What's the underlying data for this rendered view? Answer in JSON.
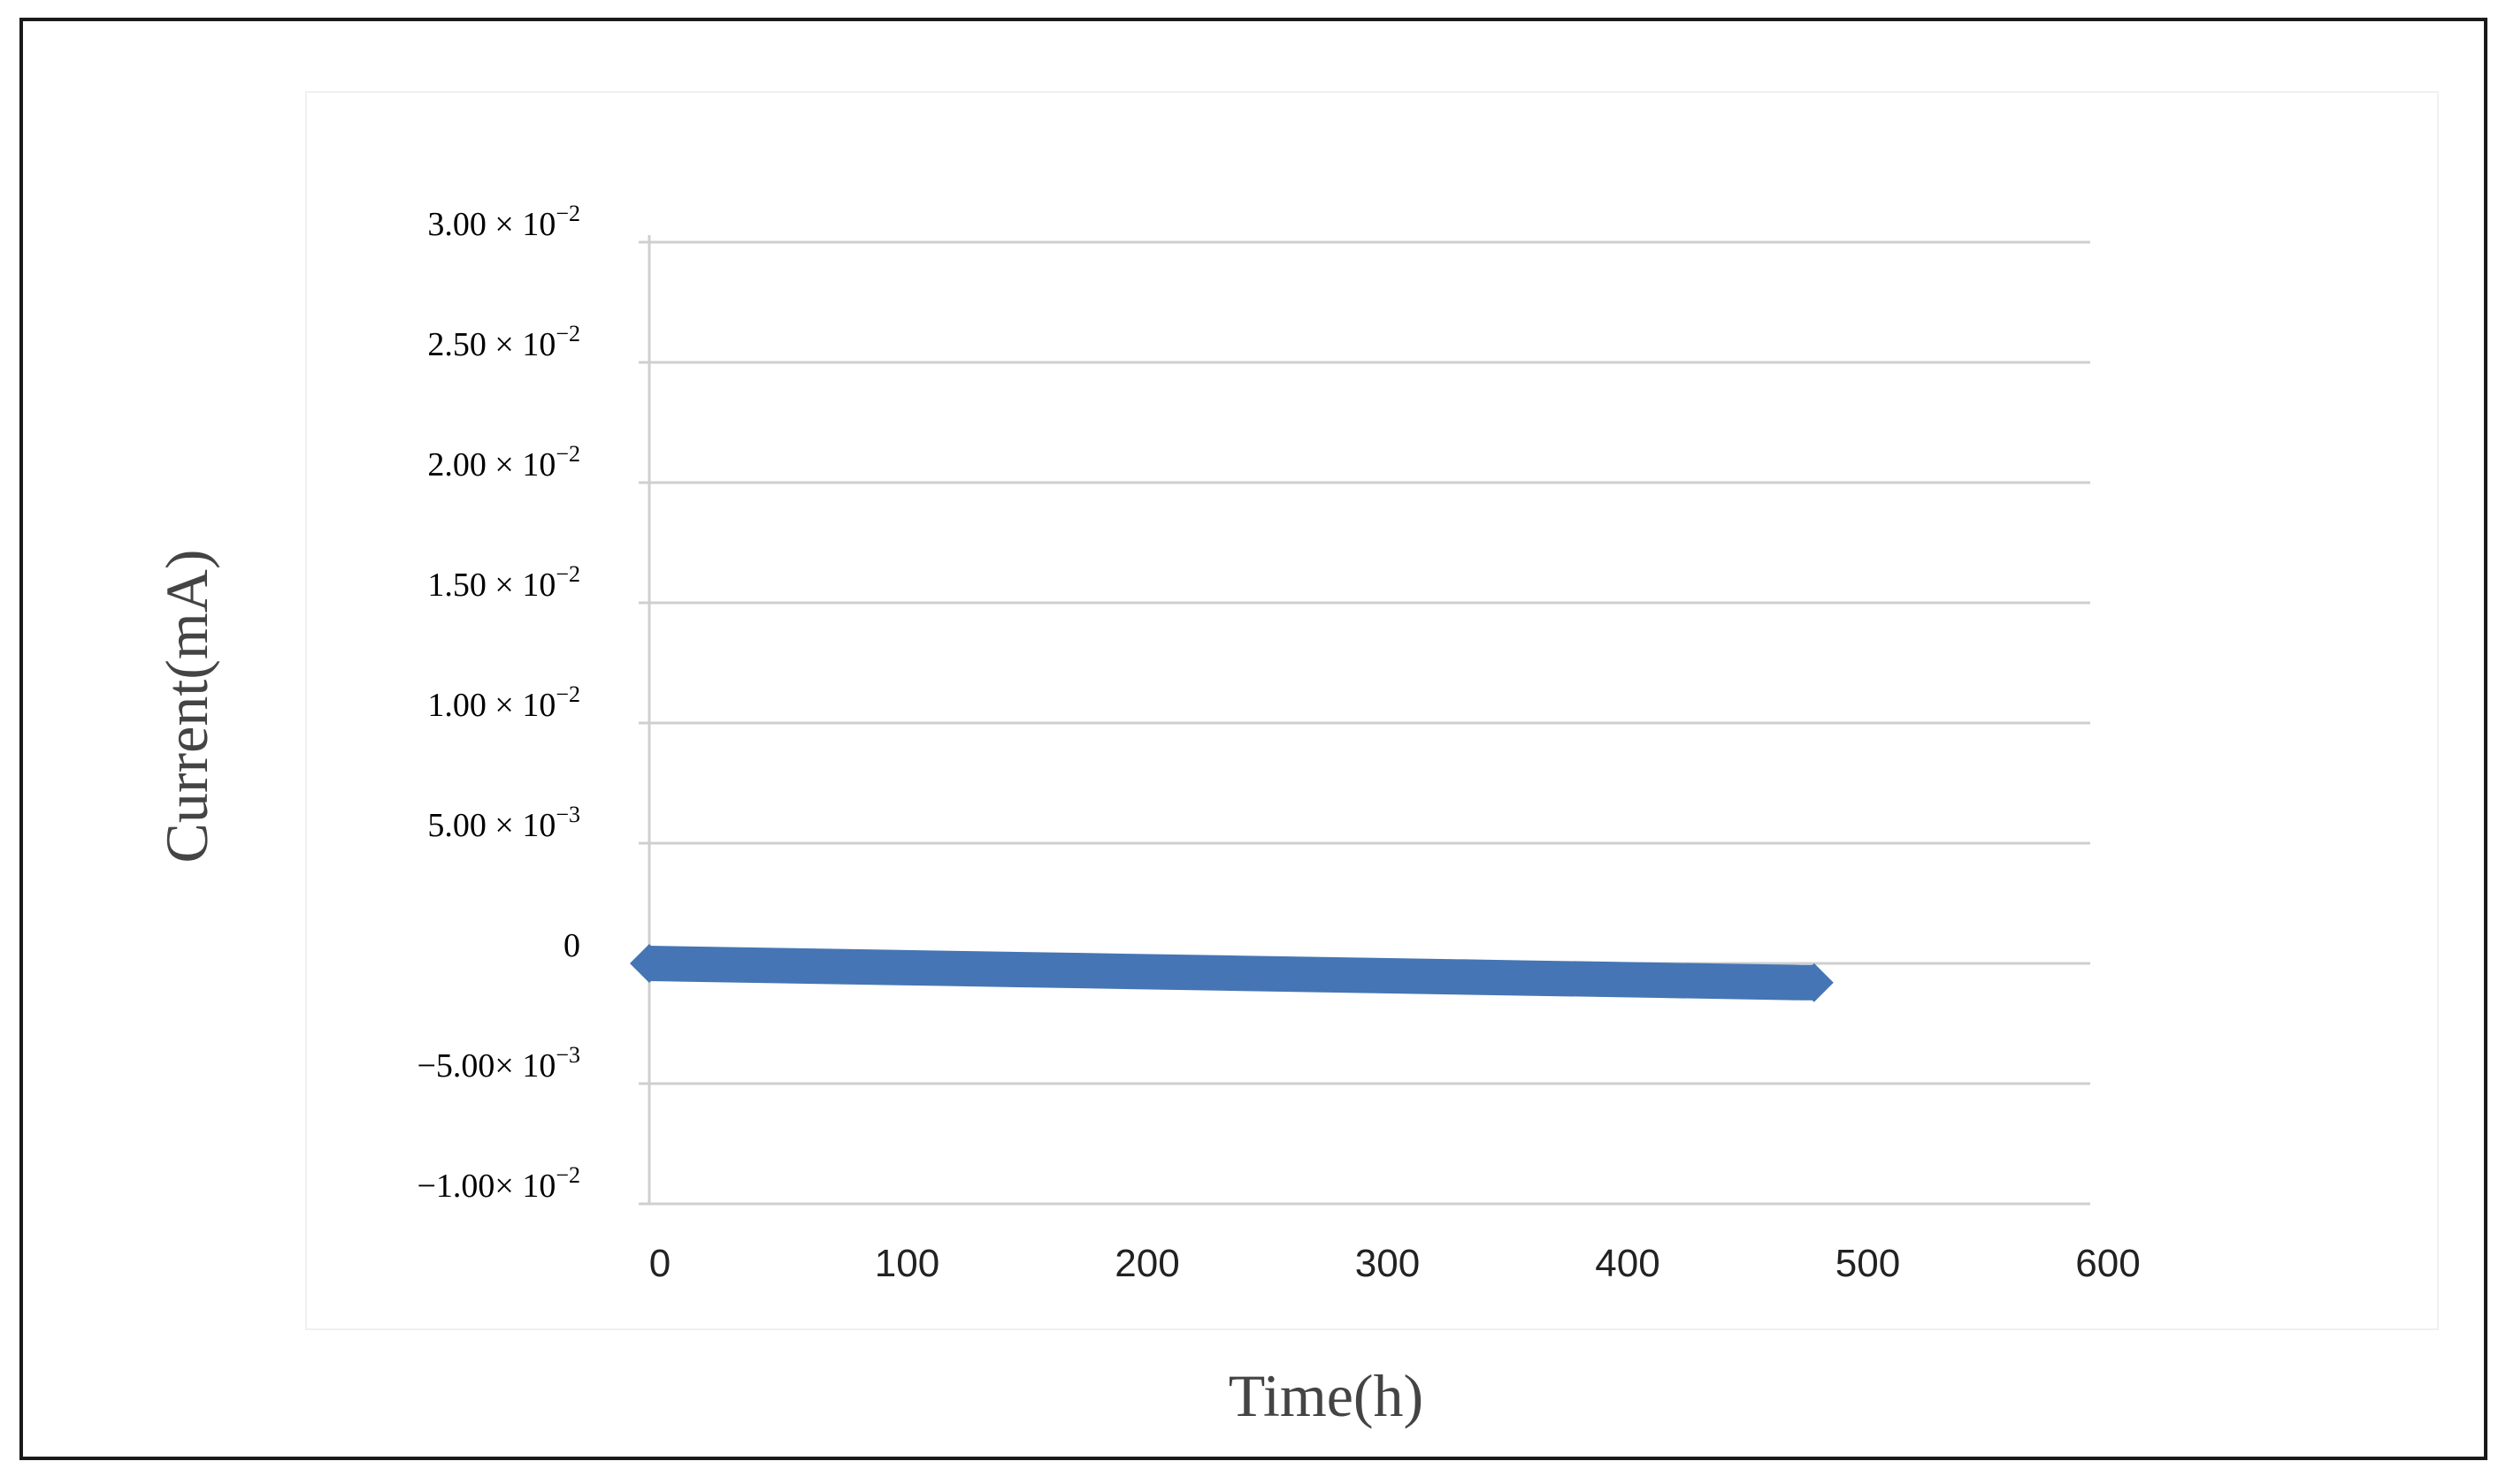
{
  "chart_data": {
    "type": "line",
    "xlabel": "Time(h)",
    "ylabel": "Current(mA)",
    "xlim": [
      0,
      600
    ],
    "ylim": [
      -0.01,
      0.03
    ],
    "x_ticks": [
      {
        "value": 0,
        "label": "0"
      },
      {
        "value": 100,
        "label": "100"
      },
      {
        "value": 200,
        "label": "200"
      },
      {
        "value": 300,
        "label": "300"
      },
      {
        "value": 400,
        "label": "400"
      },
      {
        "value": 500,
        "label": "500"
      },
      {
        "value": 600,
        "label": "600"
      }
    ],
    "y_ticks": [
      {
        "value": 0.03,
        "mant": "3.00 ",
        "exp": "−2"
      },
      {
        "value": 0.025,
        "mant": "2.50 ",
        "exp": "−2"
      },
      {
        "value": 0.02,
        "mant": "2.00 ",
        "exp": "−2"
      },
      {
        "value": 0.015,
        "mant": "1.50 ",
        "exp": "−2"
      },
      {
        "value": 0.01,
        "mant": "1.00 ",
        "exp": "−2"
      },
      {
        "value": 0.005,
        "mant": "5.00 ",
        "exp": "−3"
      },
      {
        "value": 0,
        "mant": "0",
        "exp": ""
      },
      {
        "value": -0.005,
        "mant": "−5.00",
        "exp": "−3"
      },
      {
        "value": -0.01,
        "mant": "−1.00",
        "exp": "−2"
      }
    ],
    "grid": true,
    "series": [
      {
        "color": "#4575b4",
        "x": [
          0,
          60,
          120,
          180,
          240,
          300,
          360,
          420,
          480,
          485
        ],
        "y": [
          0.0,
          -0.0001,
          -0.0002,
          -0.0003,
          -0.0004,
          -0.0005,
          -0.0006,
          -0.0007,
          -0.0008,
          -0.0008
        ]
      }
    ]
  }
}
